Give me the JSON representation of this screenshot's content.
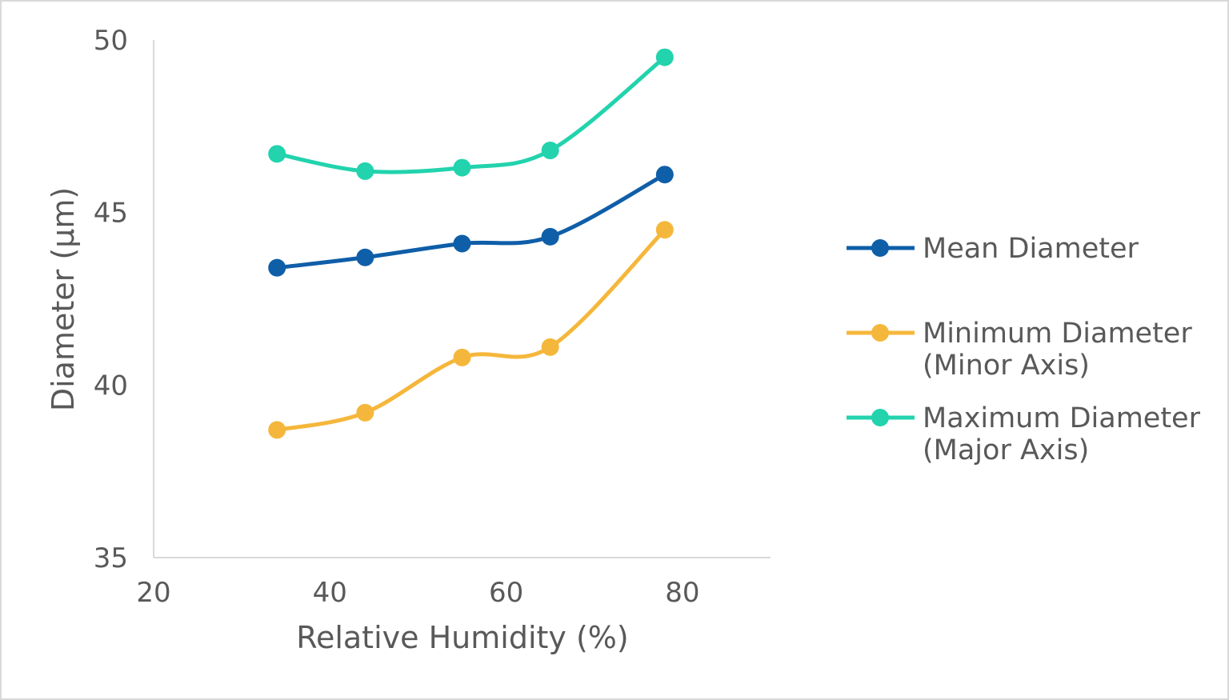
{
  "chart_data": {
    "type": "line",
    "title": "",
    "xlabel": "Relative Humidity (%)",
    "ylabel": "Diameter (µm)",
    "xlim": [
      20,
      90
    ],
    "ylim": [
      35,
      50
    ],
    "xticks": [
      20,
      40,
      60,
      80
    ],
    "yticks": [
      35,
      40,
      45,
      50
    ],
    "grid": false,
    "smooth": true,
    "legend_position": "right",
    "x": [
      34,
      44,
      55,
      65,
      78
    ],
    "series": [
      {
        "name": "Mean Diameter",
        "legend_lines": [
          "Mean Diameter"
        ],
        "color": "#0f5ea8",
        "values": [
          43.4,
          43.7,
          44.1,
          44.3,
          46.1
        ]
      },
      {
        "name": "Minimum Diameter (Minor Axis)",
        "legend_lines": [
          "Minimum Diameter",
          "(Minor Axis)"
        ],
        "color": "#f5b73b",
        "values": [
          38.7,
          39.2,
          40.8,
          41.1,
          44.5
        ]
      },
      {
        "name": "Maximum Diameter (Major Axis)",
        "legend_lines": [
          "Maximum Diameter",
          "(Major Axis)"
        ],
        "color": "#22d3ad",
        "values": [
          46.7,
          46.2,
          46.3,
          46.8,
          49.5
        ]
      }
    ]
  }
}
